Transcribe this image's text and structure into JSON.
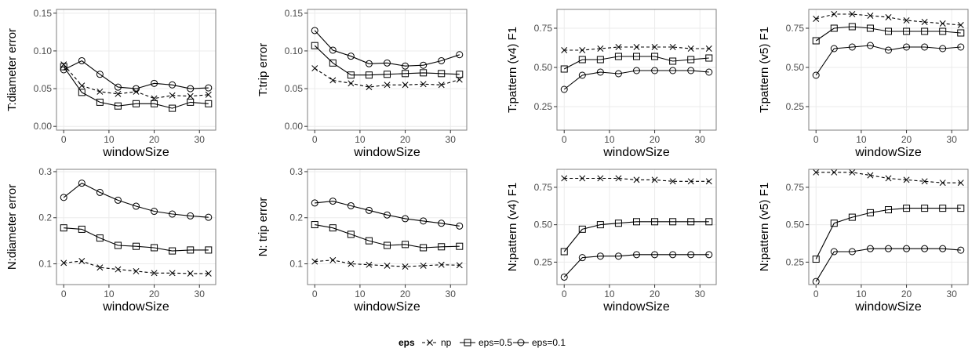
{
  "chart_data": [
    {
      "type": "line",
      "ylabel": "T:diameter error",
      "xlabel": "windowSize",
      "x": [
        0,
        4,
        8,
        12,
        16,
        20,
        24,
        28,
        32
      ],
      "xticks": [
        0,
        10,
        20,
        30
      ],
      "ylim": [
        -0.005,
        0.155
      ],
      "yticks": [
        0.0,
        0.05,
        0.1,
        0.15
      ],
      "ytick_labels": [
        "0.00",
        "0.05",
        "0.10",
        "0.15"
      ],
      "series": [
        {
          "name": "np",
          "values": [
            0.082,
            0.054,
            0.046,
            0.043,
            0.046,
            0.037,
            0.041,
            0.04,
            0.042
          ]
        },
        {
          "name": "eps=0.5",
          "values": [
            0.079,
            0.045,
            0.032,
            0.027,
            0.03,
            0.03,
            0.024,
            0.032,
            0.03
          ]
        },
        {
          "name": "eps=0.1",
          "values": [
            0.075,
            0.087,
            0.069,
            0.052,
            0.05,
            0.057,
            0.055,
            0.05,
            0.051
          ]
        }
      ]
    },
    {
      "type": "line",
      "ylabel": "T:trip error",
      "xlabel": "windowSize",
      "x": [
        0,
        4,
        8,
        12,
        16,
        20,
        24,
        28,
        32
      ],
      "xticks": [
        0,
        10,
        20,
        30
      ],
      "ylim": [
        -0.005,
        0.155
      ],
      "yticks": [
        0.0,
        0.05,
        0.1,
        0.15
      ],
      "ytick_labels": [
        "0.00",
        "0.05",
        "0.10",
        "0.15"
      ],
      "series": [
        {
          "name": "np",
          "values": [
            0.077,
            0.061,
            0.057,
            0.052,
            0.055,
            0.055,
            0.056,
            0.055,
            0.062
          ]
        },
        {
          "name": "eps=0.5",
          "values": [
            0.107,
            0.084,
            0.068,
            0.068,
            0.069,
            0.07,
            0.071,
            0.07,
            0.069
          ]
        },
        {
          "name": "eps=0.1",
          "values": [
            0.127,
            0.101,
            0.093,
            0.083,
            0.084,
            0.08,
            0.081,
            0.087,
            0.095
          ]
        }
      ]
    },
    {
      "type": "line",
      "ylabel": "T:pattern (v4) F1",
      "xlabel": "windowSize",
      "x": [
        0,
        4,
        8,
        12,
        16,
        20,
        24,
        28,
        32
      ],
      "xticks": [
        0,
        10,
        20,
        30
      ],
      "ylim": [
        0.1,
        0.87
      ],
      "yticks": [
        0.25,
        0.5,
        0.75
      ],
      "ytick_labels": [
        "0.25",
        "0.50",
        "0.75"
      ],
      "series": [
        {
          "name": "np",
          "values": [
            0.61,
            0.61,
            0.62,
            0.63,
            0.63,
            0.63,
            0.63,
            0.62,
            0.62
          ]
        },
        {
          "name": "eps=0.5",
          "values": [
            0.49,
            0.55,
            0.55,
            0.57,
            0.57,
            0.57,
            0.54,
            0.55,
            0.56
          ]
        },
        {
          "name": "eps=0.1",
          "values": [
            0.36,
            0.45,
            0.47,
            0.46,
            0.48,
            0.48,
            0.48,
            0.48,
            0.47
          ]
        }
      ]
    },
    {
      "type": "line",
      "ylabel": "T:pattern (v5) F1",
      "xlabel": "windowSize",
      "x": [
        0,
        4,
        8,
        12,
        16,
        20,
        24,
        28,
        32
      ],
      "xticks": [
        0,
        10,
        20,
        30
      ],
      "ylim": [
        0.1,
        0.87
      ],
      "yticks": [
        0.25,
        0.5,
        0.75
      ],
      "ytick_labels": [
        "0.25",
        "0.50",
        "0.75"
      ],
      "series": [
        {
          "name": "np",
          "values": [
            0.81,
            0.84,
            0.84,
            0.83,
            0.82,
            0.8,
            0.79,
            0.78,
            0.77
          ]
        },
        {
          "name": "eps=0.5",
          "values": [
            0.67,
            0.75,
            0.76,
            0.75,
            0.73,
            0.73,
            0.73,
            0.73,
            0.72
          ]
        },
        {
          "name": "eps=0.1",
          "values": [
            0.45,
            0.62,
            0.63,
            0.64,
            0.61,
            0.63,
            0.63,
            0.62,
            0.63
          ]
        }
      ]
    },
    {
      "type": "line",
      "ylabel": "N:diameter error",
      "xlabel": "windowSize",
      "x": [
        0,
        4,
        8,
        12,
        16,
        20,
        24,
        28,
        32
      ],
      "xticks": [
        0,
        10,
        20,
        30
      ],
      "ylim": [
        0.055,
        0.305
      ],
      "yticks": [
        0.1,
        0.2,
        0.3
      ],
      "ytick_labels": [
        "0.1",
        "0.2",
        "0.3"
      ],
      "series": [
        {
          "name": "np",
          "values": [
            0.102,
            0.106,
            0.092,
            0.088,
            0.084,
            0.08,
            0.08,
            0.079,
            0.079
          ]
        },
        {
          "name": "eps=0.5",
          "values": [
            0.178,
            0.175,
            0.156,
            0.14,
            0.138,
            0.135,
            0.128,
            0.13,
            0.13
          ]
        },
        {
          "name": "eps=0.1",
          "values": [
            0.244,
            0.275,
            0.255,
            0.238,
            0.225,
            0.214,
            0.208,
            0.204,
            0.201
          ]
        }
      ]
    },
    {
      "type": "line",
      "ylabel": "N: trip error",
      "xlabel": "windowSize",
      "x": [
        0,
        4,
        8,
        12,
        16,
        20,
        24,
        28,
        32
      ],
      "xticks": [
        0,
        10,
        20,
        30
      ],
      "ylim": [
        0.055,
        0.305
      ],
      "yticks": [
        0.1,
        0.2,
        0.3
      ],
      "ytick_labels": [
        "0.1",
        "0.2",
        "0.3"
      ],
      "series": [
        {
          "name": "np",
          "values": [
            0.105,
            0.108,
            0.1,
            0.098,
            0.096,
            0.094,
            0.096,
            0.098,
            0.097
          ]
        },
        {
          "name": "eps=0.5",
          "values": [
            0.185,
            0.178,
            0.164,
            0.15,
            0.14,
            0.142,
            0.135,
            0.137,
            0.138
          ]
        },
        {
          "name": "eps=0.1",
          "values": [
            0.232,
            0.236,
            0.226,
            0.216,
            0.206,
            0.198,
            0.193,
            0.188,
            0.182
          ]
        }
      ]
    },
    {
      "type": "line",
      "ylabel": "N:pattern (v4) F1",
      "xlabel": "windowSize",
      "x": [
        0,
        4,
        8,
        12,
        16,
        20,
        24,
        28,
        32
      ],
      "xticks": [
        0,
        10,
        20,
        30
      ],
      "ylim": [
        0.1,
        0.87
      ],
      "yticks": [
        0.25,
        0.5,
        0.75
      ],
      "ytick_labels": [
        "0.25",
        "0.50",
        "0.75"
      ],
      "series": [
        {
          "name": "np",
          "values": [
            0.81,
            0.81,
            0.81,
            0.81,
            0.8,
            0.8,
            0.79,
            0.79,
            0.79
          ]
        },
        {
          "name": "eps=0.5",
          "values": [
            0.32,
            0.47,
            0.5,
            0.51,
            0.52,
            0.52,
            0.52,
            0.52,
            0.52
          ]
        },
        {
          "name": "eps=0.1",
          "values": [
            0.15,
            0.28,
            0.29,
            0.29,
            0.3,
            0.3,
            0.3,
            0.3,
            0.3
          ]
        }
      ]
    },
    {
      "type": "line",
      "ylabel": "N:pattern (v5) F1",
      "xlabel": "windowSize",
      "x": [
        0,
        4,
        8,
        12,
        16,
        20,
        24,
        28,
        32
      ],
      "xticks": [
        0,
        10,
        20,
        30
      ],
      "ylim": [
        0.1,
        0.87
      ],
      "yticks": [
        0.25,
        0.5,
        0.75
      ],
      "ytick_labels": [
        "0.25",
        "0.50",
        "0.75"
      ],
      "series": [
        {
          "name": "np",
          "values": [
            0.85,
            0.85,
            0.85,
            0.83,
            0.81,
            0.8,
            0.79,
            0.78,
            0.78
          ]
        },
        {
          "name": "eps=0.5",
          "values": [
            0.27,
            0.51,
            0.55,
            0.58,
            0.6,
            0.61,
            0.61,
            0.61,
            0.61
          ]
        },
        {
          "name": "eps=0.1",
          "values": [
            0.12,
            0.32,
            0.32,
            0.34,
            0.34,
            0.34,
            0.34,
            0.34,
            0.33
          ]
        }
      ]
    }
  ],
  "legend": {
    "title": "eps",
    "placement": "bottom",
    "entries": [
      {
        "label": "np",
        "marker": "cross",
        "dash": true
      },
      {
        "label": "eps=0.5",
        "marker": "square",
        "dash": false
      },
      {
        "label": "eps=0.1",
        "marker": "circle",
        "dash": false
      }
    ]
  },
  "colors": {
    "panel_background": "#ffffff",
    "gridline": "#ebebeb",
    "panel_border": "#7f7f7f",
    "series": "#000000",
    "tick_text": "#4d4d4d",
    "label_text": "#000000"
  }
}
